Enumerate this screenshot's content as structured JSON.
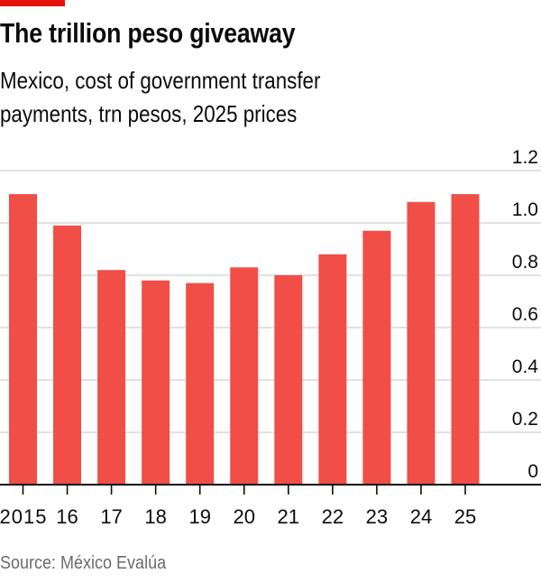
{
  "header": {
    "title": "The trillion peso giveaway",
    "subtitle_lines": [
      "Mexico, cost of government transfer",
      "payments, trn pesos, 2025 prices"
    ]
  },
  "footer": {
    "source": "Source: México Evalúa"
  },
  "colors": {
    "bar": "#f04e46",
    "tag": "#e3120b",
    "grid": "#cfcfcf",
    "axis": "#0c0c0c",
    "text": "#0c0c0c",
    "source": "#6b6b6b"
  },
  "chart_data": {
    "type": "bar",
    "title": "The trillion peso giveaway",
    "subtitle": "Mexico, cost of government transfer payments, trn pesos, 2025 prices",
    "xlabel": "",
    "ylabel": "trn pesos, 2025 prices",
    "categories": [
      "2015",
      "16",
      "17",
      "18",
      "19",
      "20",
      "21",
      "22",
      "23",
      "24",
      "25"
    ],
    "values": [
      1.11,
      0.99,
      0.82,
      0.78,
      0.77,
      0.83,
      0.8,
      0.88,
      0.97,
      1.08,
      1.11
    ],
    "ylim": [
      0,
      1.2
    ],
    "yticks": [
      0,
      0.2,
      0.4,
      0.6,
      0.8,
      1.0,
      1.2
    ],
    "ytick_labels": [
      "0",
      "0.2",
      "0.4",
      "0.6",
      "0.8",
      "1.0",
      "1.2"
    ],
    "y_axis_side": "right",
    "grid": true,
    "legend": "none",
    "source": "México Evalúa"
  }
}
